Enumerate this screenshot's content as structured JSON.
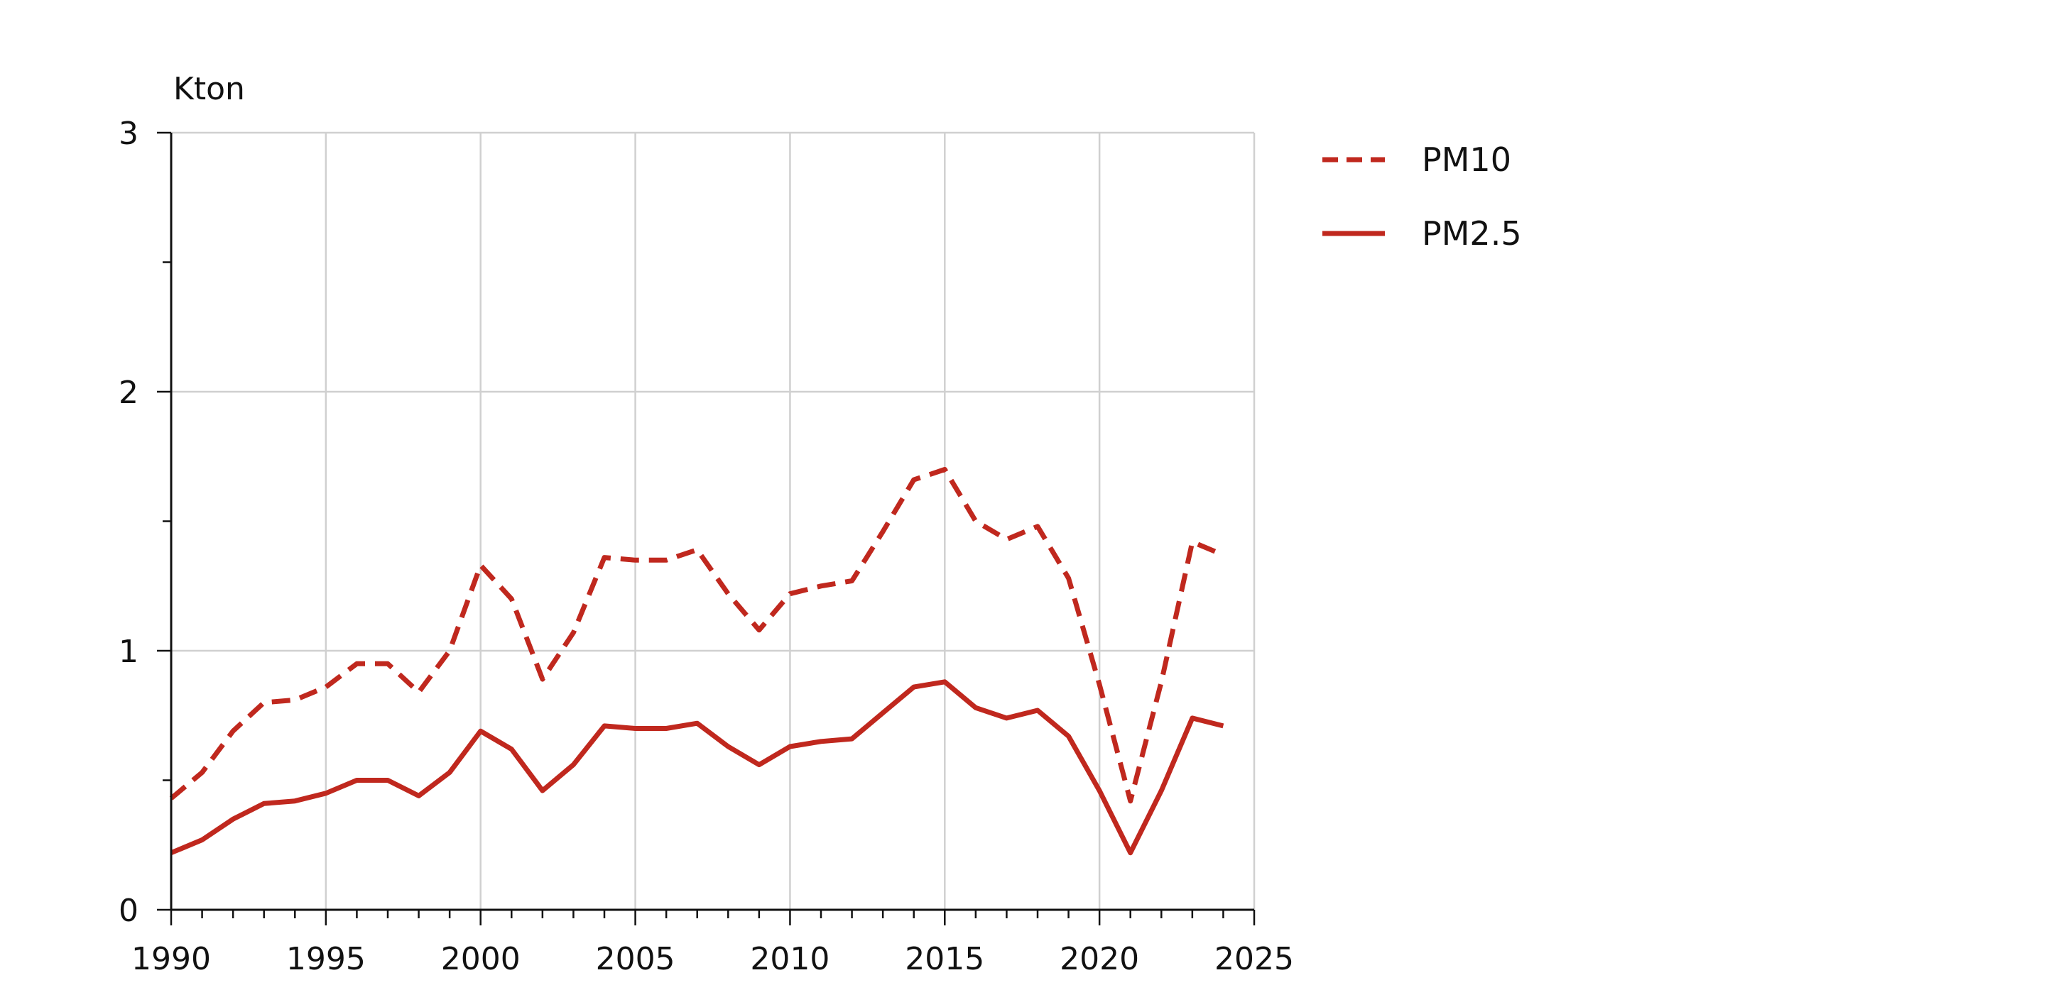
{
  "chart_data": {
    "type": "line",
    "ylabel": "Kton",
    "xlim": [
      1990,
      2025
    ],
    "ylim": [
      0,
      3
    ],
    "x_ticks": [
      "1990",
      "1995",
      "2000",
      "2005",
      "2010",
      "2015",
      "2020",
      "2025"
    ],
    "y_ticks": [
      "0",
      "1",
      "2",
      "3"
    ],
    "grid": true,
    "legend_position": "right",
    "x": [
      1990,
      1991,
      1992,
      1993,
      1994,
      1995,
      1996,
      1997,
      1998,
      1999,
      2000,
      2001,
      2002,
      2003,
      2004,
      2005,
      2006,
      2007,
      2008,
      2009,
      2010,
      2011,
      2012,
      2013,
      2014,
      2015,
      2016,
      2017,
      2018,
      2019,
      2020,
      2021,
      2022,
      2023,
      2024
    ],
    "series": [
      {
        "name": "PM10",
        "style": "dashed",
        "color": "#c0281e",
        "values": [
          0.43,
          0.53,
          0.69,
          0.8,
          0.81,
          0.86,
          0.95,
          0.95,
          0.84,
          1.0,
          1.33,
          1.2,
          0.89,
          1.07,
          1.36,
          1.35,
          1.35,
          1.39,
          1.22,
          1.08,
          1.22,
          1.25,
          1.27,
          1.46,
          1.66,
          1.7,
          1.5,
          1.43,
          1.48,
          1.28,
          0.87,
          0.42,
          0.88,
          1.42,
          1.37
        ]
      },
      {
        "name": "PM2.5",
        "style": "solid",
        "color": "#c0281e",
        "values": [
          0.22,
          0.27,
          0.35,
          0.41,
          0.42,
          0.45,
          0.5,
          0.5,
          0.44,
          0.53,
          0.69,
          0.62,
          0.46,
          0.56,
          0.71,
          0.7,
          0.7,
          0.72,
          0.63,
          0.56,
          0.63,
          0.65,
          0.66,
          0.76,
          0.86,
          0.88,
          0.78,
          0.74,
          0.77,
          0.67,
          0.46,
          0.22,
          0.46,
          0.74,
          0.71
        ]
      }
    ]
  }
}
